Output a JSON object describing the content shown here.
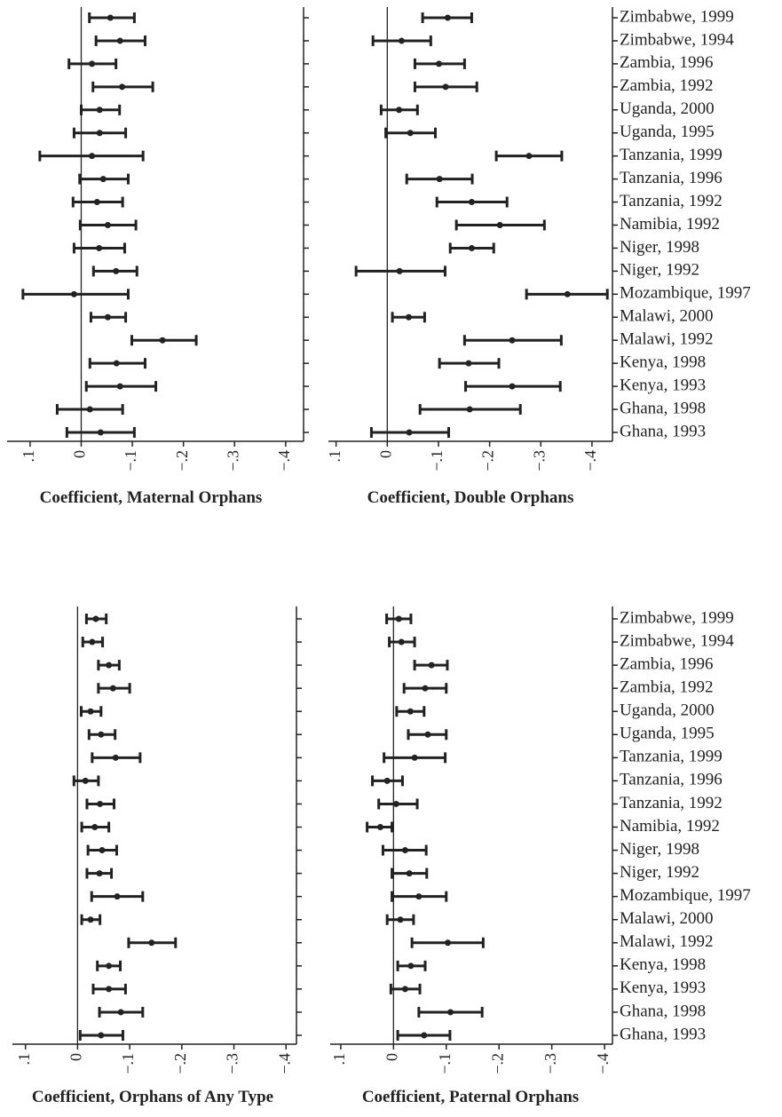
{
  "chart_data": [
    {
      "type": "errorbar",
      "xlabel": "Coefficient, Maternal Orphans",
      "color": "#222222",
      "values": [
        -0.057,
        -0.076,
        -0.021,
        -0.08,
        -0.036,
        -0.036,
        -0.021,
        -0.043,
        -0.031,
        -0.052,
        -0.035,
        -0.068,
        0.014,
        -0.052,
        -0.159,
        -0.069,
        -0.076,
        -0.017,
        -0.038
      ],
      "ci_low": [
        -0.104,
        -0.125,
        -0.068,
        -0.14,
        -0.075,
        -0.087,
        -0.121,
        -0.092,
        -0.081,
        -0.107,
        -0.085,
        -0.109,
        -0.092,
        -0.087,
        -0.225,
        -0.125,
        -0.146,
        -0.081,
        -0.104
      ],
      "ci_high": [
        -0.016,
        -0.029,
        0.024,
        -0.023,
        0.0,
        0.014,
        0.081,
        0.003,
        0.016,
        0.002,
        0.014,
        -0.024,
        0.114,
        -0.019,
        -0.099,
        -0.017,
        -0.01,
        0.047,
        0.028
      ],
      "xlim": [
        0.145,
        -0.435
      ],
      "xticks": [
        {
          "value": 0.1,
          "label": ".1"
        },
        0,
        {
          "value": -0.1,
          "label": "−.1"
        },
        {
          "value": -0.2,
          "label": "−.2"
        },
        {
          "value": -0.3,
          "label": "−.3"
        },
        {
          "value": -0.4,
          "label": "−.4"
        }
      ]
    },
    {
      "type": "errorbar",
      "xlabel": "Coefficient, Double Orphans",
      "color": "#222222",
      "categories": [
        "Zimbabwe, 1999",
        "Zimbabwe, 1994",
        "Zambia, 1996",
        "Zambia, 1992",
        "Uganda, 2000",
        "Uganda, 1995",
        "Tanzania, 1999",
        "Tanzania, 1996",
        "Tanzania, 1992",
        "Namibia, 1992",
        "Niger, 1998",
        "Niger, 1992",
        "Mozambique, 1997",
        "Malawi, 2000",
        "Malawi, 1992",
        "Kenya, 1998",
        "Kenya, 1993",
        "Ghana, 1998",
        "Ghana, 1993"
      ],
      "values": [
        -0.118,
        -0.028,
        -0.101,
        -0.114,
        -0.023,
        -0.045,
        -0.277,
        -0.102,
        -0.165,
        -0.22,
        -0.165,
        -0.024,
        -0.352,
        -0.042,
        -0.244,
        -0.159,
        -0.244,
        -0.161,
        -0.043
      ],
      "ci_low": [
        -0.165,
        -0.085,
        -0.151,
        -0.175,
        -0.059,
        -0.094,
        -0.341,
        -0.166,
        -0.234,
        -0.307,
        -0.208,
        -0.113,
        -0.43,
        -0.073,
        -0.34,
        -0.218,
        -0.338,
        -0.26,
        -0.12
      ],
      "ci_high": [
        -0.069,
        0.028,
        -0.054,
        -0.054,
        0.012,
        0.003,
        -0.213,
        -0.038,
        -0.097,
        -0.135,
        -0.123,
        0.061,
        -0.272,
        -0.01,
        -0.151,
        -0.102,
        -0.153,
        -0.064,
        0.031
      ],
      "xlim": [
        0.115,
        -0.44
      ],
      "xticks": [
        {
          "value": 0.1,
          "label": ".1"
        },
        0,
        {
          "value": -0.1,
          "label": "−.1"
        },
        {
          "value": -0.2,
          "label": "−.2"
        },
        {
          "value": -0.3,
          "label": "−.3"
        },
        {
          "value": -0.4,
          "label": "−.4"
        }
      ]
    },
    {
      "type": "errorbar",
      "xlabel": "Coefficient, Orphans of Any Type",
      "color": "#222222",
      "values": [
        -0.035,
        -0.028,
        -0.06,
        -0.068,
        -0.025,
        -0.045,
        -0.073,
        -0.015,
        -0.043,
        -0.033,
        -0.047,
        -0.042,
        -0.076,
        -0.025,
        -0.142,
        -0.06,
        -0.06,
        -0.083,
        -0.045
      ],
      "ci_low": [
        -0.055,
        -0.048,
        -0.08,
        -0.1,
        -0.045,
        -0.072,
        -0.12,
        -0.04,
        -0.07,
        -0.06,
        -0.075,
        -0.065,
        -0.125,
        -0.043,
        -0.188,
        -0.082,
        -0.092,
        -0.125,
        -0.087
      ],
      "ci_high": [
        -0.017,
        -0.01,
        -0.04,
        -0.04,
        -0.007,
        -0.022,
        -0.028,
        0.007,
        -0.018,
        -0.008,
        -0.02,
        -0.018,
        -0.027,
        -0.008,
        -0.098,
        -0.038,
        -0.03,
        -0.042,
        -0.005
      ],
      "xlim": [
        0.125,
        -0.42
      ],
      "xticks": [
        {
          "value": 0.1,
          "label": ".1"
        },
        0,
        {
          "value": -0.1,
          "label": "−.1"
        },
        {
          "value": -0.2,
          "label": "−.2"
        },
        {
          "value": -0.3,
          "label": "−.3"
        },
        {
          "value": -0.4,
          "label": "−.4"
        }
      ]
    },
    {
      "type": "errorbar",
      "xlabel": "Coefficient, Paternal Orphans",
      "color": "#222222",
      "categories": [
        "Zimbabwe, 1999",
        "Zimbabwe, 1994",
        "Zambia, 1996",
        "Zambia, 1992",
        "Uganda, 2000",
        "Uganda, 1995",
        "Tanzania, 1999",
        "Tanzania, 1996",
        "Tanzania, 1992",
        "Namibia, 1992",
        "Niger, 1998",
        "Niger, 1992",
        "Mozambique, 1997",
        "Malawi, 2000",
        "Malawi, 1992",
        "Kenya, 1998",
        "Kenya, 1993",
        "Ghana, 1998",
        "Ghana, 1993"
      ],
      "values": [
        -0.01,
        -0.015,
        -0.072,
        -0.06,
        -0.032,
        -0.065,
        -0.04,
        0.012,
        -0.005,
        0.025,
        -0.022,
        -0.03,
        -0.048,
        -0.013,
        -0.103,
        -0.033,
        -0.022,
        -0.108,
        -0.058
      ],
      "ci_low": [
        -0.033,
        -0.04,
        -0.102,
        -0.1,
        -0.058,
        -0.1,
        -0.098,
        -0.017,
        -0.045,
        0.003,
        -0.062,
        -0.063,
        -0.1,
        -0.038,
        -0.17,
        -0.06,
        -0.05,
        -0.168,
        -0.107
      ],
      "ci_high": [
        0.013,
        0.008,
        -0.04,
        -0.02,
        -0.006,
        -0.028,
        0.018,
        0.04,
        0.028,
        0.05,
        0.02,
        0.003,
        0.003,
        0.012,
        -0.035,
        -0.008,
        0.005,
        -0.048,
        -0.008
      ],
      "xlim": [
        0.12,
        -0.415
      ],
      "xticks": [
        {
          "value": 0.1,
          "label": ".1"
        },
        0,
        {
          "value": -0.1,
          "label": "−.1"
        },
        {
          "value": -0.2,
          "label": "−.2"
        },
        {
          "value": -0.3,
          "label": "−.3"
        },
        {
          "value": -0.4,
          "label": "−.4"
        }
      ]
    }
  ]
}
